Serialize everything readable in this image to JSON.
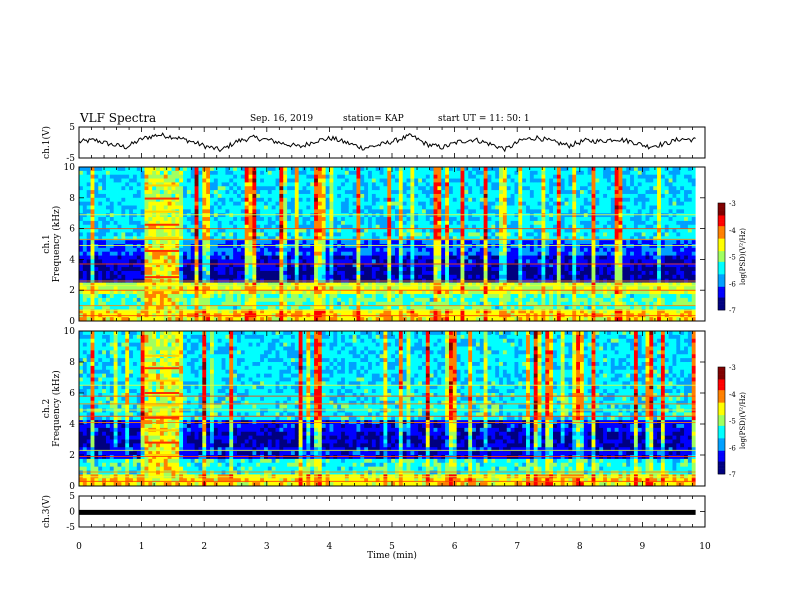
{
  "header": {
    "title": "VLF Spectra",
    "date": "Sep. 16, 2019",
    "station": "station= KAP",
    "start": "start  UT =   11: 50: 1"
  },
  "colors": {
    "jet": [
      "#000080",
      "#0000ff",
      "#00a0ff",
      "#00ffff",
      "#a0ff60",
      "#ffff00",
      "#ff8000",
      "#ff0000",
      "#800000"
    ],
    "trace": "#000000"
  },
  "chart_data": [
    {
      "id": "ch1-waveform",
      "type": "line",
      "ylabel": "ch.1(V)",
      "ylim": [
        -5,
        5
      ],
      "yticks": [
        "5",
        "-5"
      ],
      "xlim": [
        0,
        10
      ],
      "series": [
        {
          "values": [
            0.2,
            0.8,
            -0.6,
            -1.5,
            1.2,
            2.5,
            1.8,
            0.5,
            -1.2,
            -2.5,
            0.4,
            1.6,
            0.8,
            -0.4,
            -1.4,
            0.6,
            1.4,
            -0.2,
            -1.8,
            -0.8,
            0.6,
            2.2,
            -0.6,
            -1.6,
            0.2,
            1.0,
            -0.5,
            -2.2,
            0.8,
            1.6,
            0.2,
            -1.0,
            0.6,
            0.4,
            1.2,
            0.2,
            -1.3,
            -0.5,
            1.1,
            0.9
          ]
        }
      ]
    },
    {
      "id": "ch1-spectrogram",
      "type": "heatmap",
      "ylabel": "ch.1\nFrequency  (kHz)",
      "ylim": [
        0,
        10
      ],
      "yticks": [
        "0",
        "2",
        "4",
        "6",
        "8",
        "10"
      ],
      "xlim": [
        0,
        10
      ],
      "colorbar": {
        "label": "log(PSD)(V²/Hz)",
        "range": [
          -7,
          -3
        ],
        "ticks": [
          "-3",
          "-4",
          "-5",
          "-6",
          "-7"
        ]
      },
      "burst_minutes": [
        1.05,
        1.6
      ]
    },
    {
      "id": "ch2-spectrogram",
      "type": "heatmap",
      "ylabel": "ch.2\nFrequency  (kHz)",
      "ylim": [
        0,
        10
      ],
      "yticks": [
        "0",
        "2",
        "4",
        "6",
        "8",
        "10"
      ],
      "xlim": [
        0,
        10
      ],
      "colorbar": {
        "label": "log(PSD)(V²/Hz)",
        "range": [
          -7,
          -3
        ],
        "ticks": [
          "-3",
          "-4",
          "-5",
          "-6",
          "-7"
        ]
      },
      "burst_minutes": [
        1.05,
        1.6
      ]
    },
    {
      "id": "ch3-waveform",
      "type": "line",
      "ylabel": "ch.3(V)",
      "ylim": [
        -5,
        5
      ],
      "yticks": [
        "5",
        "0",
        "-5"
      ],
      "xlim": [
        0,
        10
      ],
      "xlabel": "Time  (min)",
      "xticks": [
        "0",
        "1",
        "2",
        "3",
        "4",
        "5",
        "6",
        "7",
        "8",
        "9",
        "10"
      ],
      "series": [
        {
          "values": [
            -0.3,
            -0.3
          ]
        }
      ]
    }
  ]
}
